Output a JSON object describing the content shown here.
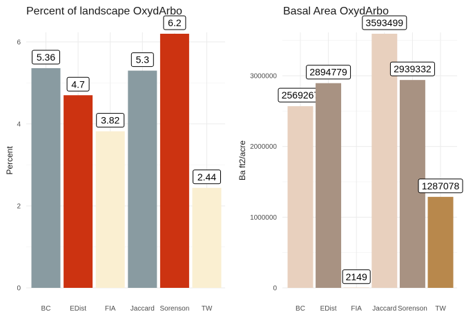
{
  "chart_data": [
    {
      "type": "bar",
      "title": "Percent of landscape  OxydArbo",
      "xlabel": "",
      "ylabel": "Percent",
      "ylim": [
        0,
        6.2
      ],
      "yticks": [
        0,
        2,
        4,
        6
      ],
      "grid": true,
      "categories": [
        "BC",
        "EDist",
        "FIA",
        "Jaccard",
        "Sorenson",
        "TW"
      ],
      "values": [
        5.36,
        4.7,
        3.82,
        5.3,
        6.2,
        2.44
      ],
      "labels": [
        "5.36",
        "4.7",
        "3.82",
        "5.3",
        "6.2",
        "2.44"
      ],
      "colors": [
        "#899ba1",
        "#cc3311",
        "#faefd1",
        "#899ba1",
        "#cc3311",
        "#faefd1"
      ]
    },
    {
      "type": "bar",
      "title": "Basal Area  OxydArbo",
      "xlabel": "",
      "ylabel": "Ba ft2/acre",
      "ylim": [
        0,
        3593499
      ],
      "yticks": [
        0,
        1000000,
        2000000,
        3000000
      ],
      "grid": true,
      "categories": [
        "BC",
        "EDist",
        "FIA",
        "Jaccard",
        "Sorenson",
        "TW"
      ],
      "values": [
        2569267,
        2894779,
        2149,
        3593499,
        2939332,
        1287078
      ],
      "labels": [
        "2569267",
        "2894779",
        "2149",
        "3593499",
        "2939332",
        "1287078"
      ],
      "colors": [
        "#e8d0be",
        "#a89282",
        "#e8d0be",
        "#e8d0be",
        "#a89282",
        "#b8884c"
      ]
    }
  ]
}
